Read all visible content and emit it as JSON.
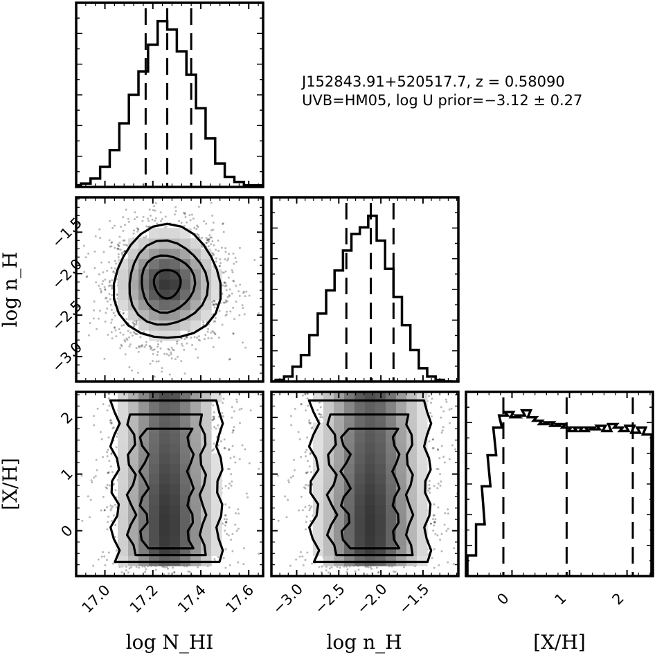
{
  "annotation": {
    "line1": "J152843.91+520517.7, z = 0.58090",
    "line2": "UVB=HM05, log U prior=−3.12 ± 0.27"
  },
  "chart_data": {
    "type": "corner",
    "parameters": [
      {
        "key": "logNHI",
        "label": "log N_HI",
        "range": [
          16.88,
          17.66
        ],
        "ticks": [
          17.0,
          17.2,
          17.4,
          17.6
        ],
        "tick_labels": [
          "17.0",
          "17.2",
          "17.4",
          "17.6"
        ],
        "quantiles": [
          17.17,
          17.26,
          17.36
        ]
      },
      {
        "key": "lognH",
        "label": "log n_H",
        "range": [
          -3.3,
          -1.08
        ],
        "ticks": [
          -3.0,
          -2.5,
          -2.0,
          -1.5
        ],
        "tick_labels": [
          "−3.0",
          "−2.5",
          "−2.0",
          "−1.5"
        ],
        "quantiles": [
          -2.41,
          -2.12,
          -1.85
        ]
      },
      {
        "key": "XH",
        "label": "[X/H]",
        "range": [
          -0.8,
          2.45
        ],
        "ticks": [
          0,
          1,
          2
        ],
        "tick_labels": [
          "0",
          "1",
          "2"
        ],
        "quantiles": [
          -0.15,
          0.95,
          2.1
        ]
      }
    ],
    "histograms": [
      {
        "parameter": "logNHI",
        "x": [
          16.88,
          16.92,
          16.96,
          17.0,
          17.04,
          17.08,
          17.12,
          17.16,
          17.2,
          17.24,
          17.28,
          17.32,
          17.36,
          17.4,
          17.44,
          17.48,
          17.52,
          17.56,
          17.6,
          17.64
        ],
        "counts": [
          0.01,
          0.02,
          0.05,
          0.12,
          0.22,
          0.38,
          0.55,
          0.69,
          0.85,
          0.99,
          0.94,
          0.81,
          0.67,
          0.47,
          0.29,
          0.14,
          0.06,
          0.03,
          0.01,
          0.01
        ]
      },
      {
        "parameter": "lognH",
        "x": [
          -3.3,
          -3.2,
          -3.1,
          -3.0,
          -2.9,
          -2.8,
          -2.7,
          -2.6,
          -2.5,
          -2.4,
          -2.3,
          -2.2,
          -2.1,
          -2.0,
          -1.9,
          -1.8,
          -1.7,
          -1.6,
          -1.5,
          -1.4,
          -1.3,
          -1.2
        ],
        "counts": [
          0.0,
          0.01,
          0.03,
          0.09,
          0.16,
          0.28,
          0.41,
          0.55,
          0.67,
          0.79,
          0.89,
          0.93,
          1.0,
          0.85,
          0.68,
          0.51,
          0.34,
          0.19,
          0.08,
          0.03,
          0.01,
          0.0
        ]
      },
      {
        "parameter": "XH",
        "x": [
          -0.7,
          -0.55,
          -0.45,
          -0.35,
          -0.25,
          -0.15,
          -0.05,
          0.05,
          0.15,
          0.25,
          0.35,
          0.45,
          0.55,
          0.65,
          0.75,
          0.85,
          0.95,
          1.05,
          1.15,
          1.25,
          1.35,
          1.45,
          1.55,
          1.65,
          1.75,
          1.85,
          1.95,
          2.05,
          2.15,
          2.25,
          2.35
        ],
        "counts": [
          0.12,
          0.3,
          0.52,
          0.7,
          0.86,
          0.93,
          0.95,
          0.92,
          0.93,
          0.96,
          0.92,
          0.9,
          0.88,
          0.89,
          0.87,
          0.88,
          0.86,
          0.84,
          0.86,
          0.84,
          0.86,
          0.85,
          0.87,
          0.84,
          0.88,
          0.86,
          0.84,
          0.87,
          0.83,
          0.86,
          0.82
        ]
      }
    ],
    "joint_2d": [
      {
        "x": "logNHI",
        "y": "lognH",
        "center": [
          17.26,
          -2.12
        ],
        "sigma": [
          0.11,
          0.34
        ],
        "shape": "gaussian"
      },
      {
        "x": "logNHI",
        "y": "XH",
        "center": [
          17.26,
          0.85
        ],
        "sigma": [
          0.11,
          0.95
        ],
        "shape": "flat-in-y"
      },
      {
        "x": "lognH",
        "y": "XH",
        "center": [
          -2.12,
          0.85
        ],
        "sigma": [
          0.34,
          0.95
        ],
        "shape": "flat-in-y"
      }
    ],
    "xlabels": [
      "log N_HI",
      "log n_H",
      "[X/H]"
    ],
    "ylabels": [
      "log n_H",
      "[X/H]"
    ],
    "grid": false,
    "legend": "none"
  }
}
